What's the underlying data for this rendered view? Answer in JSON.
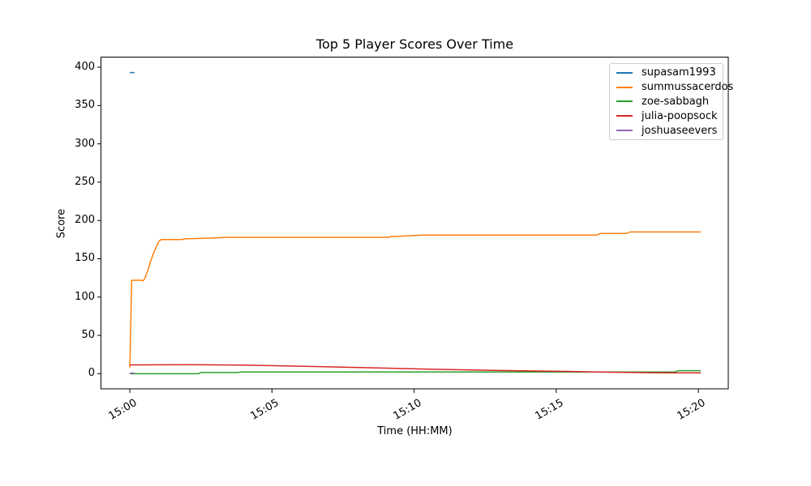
{
  "chart_data": {
    "type": "line",
    "title": "Top 5 Player Scores Over Time",
    "xlabel": "Time (HH:MM)",
    "ylabel": "Score",
    "grid": false,
    "legend": {
      "position": "upper right"
    },
    "x_axis": {
      "unit": "seconds since 15:00",
      "tick_labels": [
        "15:00",
        "15:05",
        "15:10",
        "15:15",
        "15:20"
      ],
      "tick_seconds": [
        0,
        300,
        600,
        900,
        1200
      ],
      "range_seconds": [
        -60,
        1263
      ]
    },
    "y_axis": {
      "ticks": [
        0,
        50,
        100,
        150,
        200,
        250,
        300,
        350,
        400
      ],
      "range": [
        -19.7,
        412.7
      ]
    },
    "series": [
      {
        "name": "supasam1993",
        "color": "#1f77b4",
        "points": [
          [
            0,
            393
          ],
          [
            10,
            393
          ]
        ]
      },
      {
        "name": "summussacerdos",
        "color": "#ff7f0e",
        "points": [
          [
            0,
            8
          ],
          [
            4,
            122
          ],
          [
            25,
            122
          ],
          [
            28,
            121
          ],
          [
            32,
            125
          ],
          [
            38,
            135
          ],
          [
            44,
            147
          ],
          [
            50,
            157
          ],
          [
            56,
            166
          ],
          [
            62,
            173
          ],
          [
            66,
            175
          ],
          [
            110,
            175
          ],
          [
            115,
            176
          ],
          [
            172,
            177
          ],
          [
            205,
            178
          ],
          [
            545,
            178
          ],
          [
            550,
            179
          ],
          [
            590,
            180
          ],
          [
            620,
            181
          ],
          [
            985,
            181
          ],
          [
            993,
            183
          ],
          [
            1048,
            183
          ],
          [
            1055,
            185
          ],
          [
            1205,
            185
          ]
        ]
      },
      {
        "name": "zoe-sabbagh",
        "color": "#2ca02c",
        "points": [
          [
            0,
            0
          ],
          [
            145,
            0
          ],
          [
            150,
            1.5
          ],
          [
            228,
            1.5
          ],
          [
            233,
            2.2
          ],
          [
            1150,
            2.2
          ],
          [
            1158,
            4
          ],
          [
            1205,
            4
          ]
        ]
      },
      {
        "name": "julia-poopsock",
        "color": "#d62728",
        "points": [
          [
            0,
            11.5
          ],
          [
            120,
            11.8
          ],
          [
            240,
            11.3
          ],
          [
            420,
            9
          ],
          [
            630,
            6
          ],
          [
            780,
            4.2
          ],
          [
            920,
            3
          ],
          [
            1010,
            2
          ],
          [
            1110,
            1.2
          ],
          [
            1205,
            1
          ]
        ]
      },
      {
        "name": "joshuaseevers",
        "color": "#9467bd",
        "points": [
          [
            0,
            0.8
          ],
          [
            10,
            0.8
          ]
        ]
      }
    ]
  }
}
